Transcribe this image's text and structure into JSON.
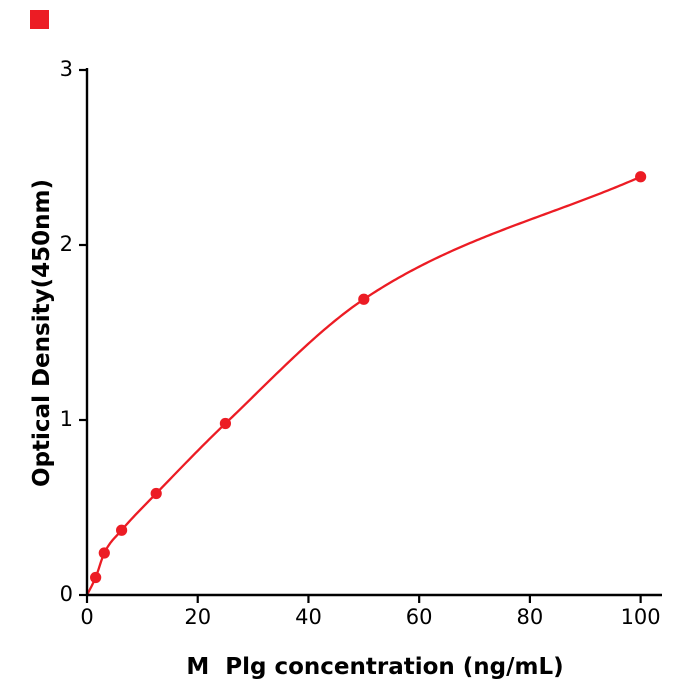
{
  "figure": {
    "background": "#ffffff",
    "accent_red": "#ec1c24"
  },
  "chart_data": {
    "type": "scatter",
    "title": "",
    "xlabel": "M  Plg concentration (ng/mL)",
    "ylabel": "Optical Density(450nm)",
    "x": [
      1.56,
      3.125,
      6.25,
      12.5,
      25,
      50,
      100
    ],
    "y": [
      0.1,
      0.24,
      0.37,
      0.58,
      0.98,
      1.69,
      2.39
    ],
    "curve_start_x": 0,
    "curve_start_y": 0,
    "xlim": [
      0,
      103.5
    ],
    "ylim": [
      0,
      3
    ],
    "x_ticks": [
      0,
      20,
      40,
      60,
      80,
      100
    ],
    "y_ticks": [
      0,
      1,
      2,
      3
    ],
    "point_color": "#ec1c24",
    "line_color": "#ec1c24",
    "axis_color": "#000000",
    "grid": false,
    "legend_position": "none"
  }
}
